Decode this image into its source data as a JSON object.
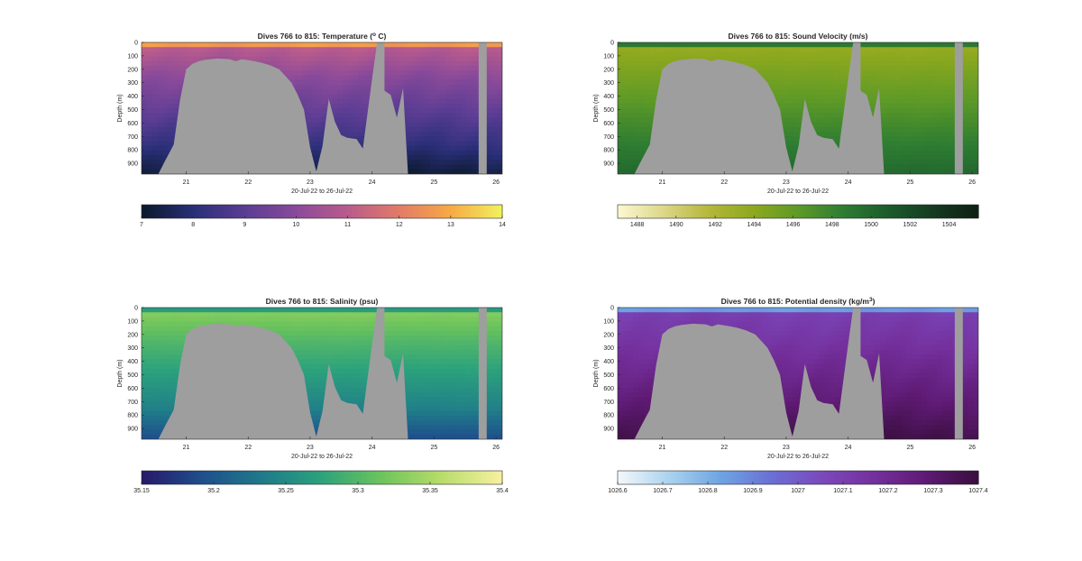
{
  "chart_data": [
    {
      "type": "heatmap",
      "title": "Dives 766 to 815: Temperature (",
      "title_sup": "o",
      "title_end": " C)",
      "xlabel": "20-Jul-22 to 26-Jul-22",
      "ylabel": "Depth (m)",
      "x_ticks": [
        "21",
        "22",
        "23",
        "24",
        "25",
        "26"
      ],
      "y_ticks": [
        "0",
        "100",
        "200",
        "300",
        "400",
        "500",
        "600",
        "700",
        "800",
        "900"
      ],
      "xlim": [
        20.28,
        26.1
      ],
      "ylim": [
        0,
        980
      ],
      "colorbar": {
        "min": 7,
        "max": 14,
        "ticks": [
          "7",
          "8",
          "9",
          "10",
          "11",
          "12",
          "13",
          "14"
        ],
        "tick_values": [
          7,
          8,
          9,
          10,
          11,
          12,
          13,
          14
        ],
        "colors": [
          "#0b1a2e",
          "#2a2f78",
          "#5b3d94",
          "#8a4a9a",
          "#b95b8c",
          "#e27a68",
          "#f7a845",
          "#f1f05c"
        ]
      },
      "profile": {
        "surface": 14,
        "upper": 11,
        "mid": 10,
        "deep": 8.2,
        "bottom": 7.2
      }
    },
    {
      "type": "heatmap",
      "title": "Dives 766 to 815: Sound Velocity (m/s)",
      "xlabel": "20-Jul-22 to 26-Jul-22",
      "ylabel": "Depth (m)",
      "x_ticks": [
        "21",
        "22",
        "23",
        "24",
        "25",
        "26"
      ],
      "y_ticks": [
        "0",
        "100",
        "200",
        "300",
        "400",
        "500",
        "600",
        "700",
        "800",
        "900"
      ],
      "xlim": [
        20.28,
        26.1
      ],
      "ylim": [
        0,
        980
      ],
      "colorbar": {
        "min": 1487,
        "max": 1505.5,
        "ticks": [
          "1488",
          "1490",
          "1492",
          "1494",
          "1496",
          "1498",
          "1500",
          "1502",
          "1504"
        ],
        "tick_values": [
          1488,
          1490,
          1492,
          1494,
          1496,
          1498,
          1500,
          1502,
          1504
        ],
        "colors": [
          "#fbf7cf",
          "#dcd788",
          "#b4b73a",
          "#8da81e",
          "#5e9a27",
          "#2e7d32",
          "#1c5c2c",
          "#153c21",
          "#0e1f14"
        ]
      },
      "profile": {
        "surface": 1503,
        "upper": 1493.5,
        "mid": 1495,
        "deep": 1498.5,
        "bottom": 1500
      }
    },
    {
      "type": "heatmap",
      "title": "Dives 766 to 815: Salinity (psu)",
      "xlabel": "20-Jul-22 to 26-Jul-22",
      "ylabel": "Depth (m)",
      "x_ticks": [
        "21",
        "22",
        "23",
        "24",
        "25",
        "26"
      ],
      "y_ticks": [
        "0",
        "100",
        "200",
        "300",
        "400",
        "500",
        "600",
        "700",
        "800",
        "900"
      ],
      "xlim": [
        20.28,
        26.1
      ],
      "ylim": [
        0,
        980
      ],
      "colorbar": {
        "min": 35.15,
        "max": 35.4,
        "ticks": [
          "35.15",
          "35.2",
          "35.25",
          "35.3",
          "35.35",
          "35.4"
        ],
        "tick_values": [
          35.15,
          35.2,
          35.25,
          35.3,
          35.35,
          35.4
        ],
        "colors": [
          "#271a6b",
          "#1f4f8c",
          "#1f7a8a",
          "#2ca27c",
          "#6cc45c",
          "#b8dc6a",
          "#f6f0a0"
        ]
      },
      "profile": {
        "surface": 35.22,
        "upper": 35.33,
        "mid": 35.3,
        "deep": 35.24,
        "bottom": 35.19
      }
    },
    {
      "type": "heatmap",
      "title": "Dives 766 to 815: Potential density (kg/m",
      "title_sup": "3",
      "title_end": ")",
      "xlabel": "20-Jul-22 to 26-Jul-22",
      "ylabel": "Depth (m)",
      "x_ticks": [
        "21",
        "22",
        "23",
        "24",
        "25",
        "26"
      ],
      "y_ticks": [
        "0",
        "100",
        "200",
        "300",
        "400",
        "500",
        "600",
        "700",
        "800",
        "900"
      ],
      "xlim": [
        20.28,
        26.1
      ],
      "ylim": [
        0,
        980
      ],
      "colorbar": {
        "min": 1026.6,
        "max": 1027.4,
        "ticks": [
          "1026.6",
          "1026.7",
          "1026.8",
          "1026.9",
          "1027",
          "1027.1",
          "1027.2",
          "1027.3",
          "1027.4"
        ],
        "tick_values": [
          1026.6,
          1026.7,
          1026.8,
          1026.9,
          1027,
          1027.1,
          1027.2,
          1027.3,
          1027.4
        ],
        "colors": [
          "#f2f7fb",
          "#a9d2ee",
          "#6ea3e2",
          "#6a6fd4",
          "#7b48bb",
          "#74309c",
          "#5e1a73",
          "#3a0f3f"
        ]
      },
      "profile": {
        "surface": 1026.65,
        "upper": 1027.1,
        "mid": 1027.15,
        "deep": 1027.3,
        "bottom": 1027.38
      }
    }
  ],
  "mask_color": "#9e9e9e",
  "seafloor_depths": [
    [
      20.28,
      990
    ],
    [
      20.55,
      990
    ],
    [
      20.65,
      890
    ],
    [
      20.8,
      760
    ],
    [
      20.9,
      430
    ],
    [
      21.0,
      200
    ],
    [
      21.1,
      160
    ],
    [
      21.2,
      140
    ],
    [
      21.3,
      130
    ],
    [
      21.5,
      120
    ],
    [
      21.7,
      125
    ],
    [
      21.8,
      140
    ],
    [
      21.9,
      125
    ],
    [
      22.1,
      140
    ],
    [
      22.2,
      150
    ],
    [
      22.35,
      170
    ],
    [
      22.5,
      200
    ],
    [
      22.6,
      250
    ],
    [
      22.7,
      300
    ],
    [
      22.8,
      390
    ],
    [
      22.9,
      500
    ],
    [
      23.0,
      780
    ],
    [
      23.1,
      960
    ],
    [
      23.2,
      770
    ],
    [
      23.3,
      420
    ],
    [
      23.4,
      590
    ],
    [
      23.5,
      690
    ],
    [
      23.6,
      710
    ],
    [
      23.75,
      720
    ],
    [
      23.85,
      790
    ],
    [
      24.0,
      270
    ],
    [
      24.08,
      0
    ],
    [
      24.2,
      360
    ],
    [
      24.3,
      390
    ],
    [
      24.4,
      560
    ],
    [
      24.5,
      340
    ],
    [
      24.58,
      990
    ],
    [
      26.1,
      990
    ]
  ],
  "gaps": [
    [
      24.08,
      24.2
    ],
    [
      25.72,
      25.85
    ]
  ]
}
